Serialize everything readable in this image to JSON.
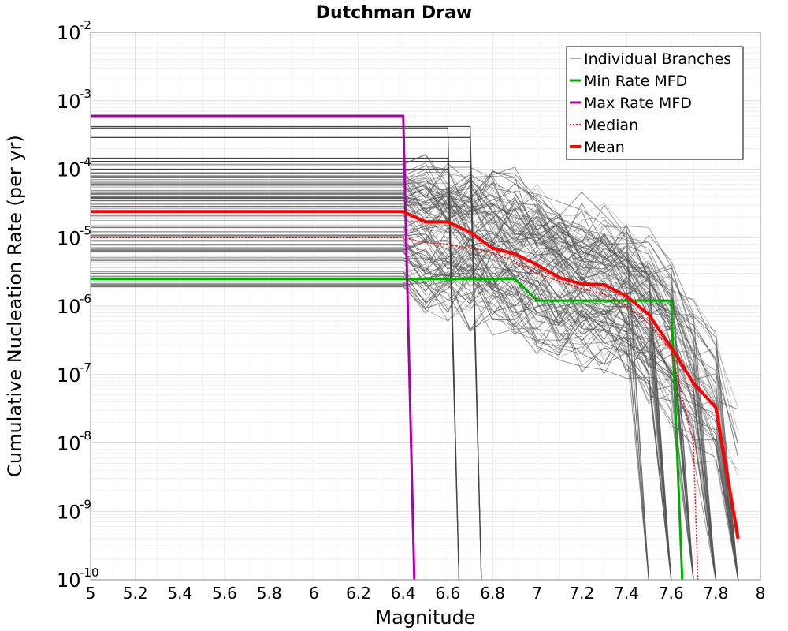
{
  "chart_data": {
    "type": "line",
    "title": "Dutchman Draw",
    "xlabel": "Magnitude",
    "ylabel": "Cumulative Nucleation Rate (per yr)",
    "xlim": [
      5,
      8
    ],
    "ylim": [
      1e-10,
      0.01
    ],
    "yscale": "log",
    "grid": true,
    "legend_position": "top-right",
    "x_ticks": [
      "5",
      "5.2",
      "5.4",
      "5.6",
      "5.8",
      "6",
      "6.2",
      "6.4",
      "6.6",
      "6.8",
      "7",
      "7.2",
      "7.4",
      "7.6",
      "7.8",
      "8"
    ],
    "y_ticks": [
      {
        "base": "10",
        "exp": "-10",
        "value": 1e-10
      },
      {
        "base": "10",
        "exp": "-9",
        "value": 1e-09
      },
      {
        "base": "10",
        "exp": "-8",
        "value": 1e-08
      },
      {
        "base": "10",
        "exp": "-7",
        "value": 1e-07
      },
      {
        "base": "10",
        "exp": "-6",
        "value": 1e-06
      },
      {
        "base": "10",
        "exp": "-5",
        "value": 1e-05
      },
      {
        "base": "10",
        "exp": "-4",
        "value": 0.0001
      },
      {
        "base": "10",
        "exp": "-3",
        "value": 0.001
      },
      {
        "base": "10",
        "exp": "-2",
        "value": 0.01
      }
    ],
    "series": [
      {
        "name": "Min Rate MFD",
        "color": "#00aa00",
        "x": [
          5.0,
          6.9,
          7.0,
          7.6,
          7.65
        ],
        "y": [
          2.5e-06,
          2.5e-06,
          1.2e-06,
          1.2e-06,
          1e-10
        ]
      },
      {
        "name": "Max Rate MFD",
        "color": "#aa00aa",
        "x": [
          5.0,
          6.4,
          6.45
        ],
        "y": [
          0.0006,
          0.0006,
          1e-10
        ]
      },
      {
        "name": "Median",
        "color": "#ff0000",
        "style": "dotted",
        "x": [
          5.0,
          6.4,
          6.5,
          6.6,
          6.7,
          6.8,
          6.9,
          7.0,
          7.1,
          7.2,
          7.3,
          7.4,
          7.5,
          7.6,
          7.7,
          7.72
        ],
        "y": [
          1e-05,
          1e-05,
          8.5e-06,
          8e-06,
          7e-06,
          6e-06,
          4.5e-06,
          3e-06,
          2.3e-06,
          1.8e-06,
          1.5e-06,
          1e-06,
          5.5e-07,
          2.2e-07,
          1e-08,
          1e-10
        ]
      },
      {
        "name": "Mean",
        "color": "#ff0000",
        "x": [
          5.0,
          6.4,
          6.5,
          6.6,
          6.7,
          6.8,
          6.9,
          7.0,
          7.1,
          7.2,
          7.3,
          7.4,
          7.5,
          7.6,
          7.7,
          7.8,
          7.9
        ],
        "y": [
          2.4e-05,
          2.4e-05,
          1.7e-05,
          1.7e-05,
          1.2e-05,
          7e-06,
          5.8e-06,
          4e-06,
          2.6e-06,
          2.1e-06,
          2.05e-06,
          1.4e-06,
          7.5e-07,
          2.5e-07,
          7.5e-08,
          3.3e-08,
          4e-10
        ]
      }
    ],
    "branch_series": {
      "name": "Individual Branches",
      "color": "#555555",
      "count": 120,
      "description_range_y_at_m5": [
        1.9e-06,
        0.00042
      ]
    }
  }
}
